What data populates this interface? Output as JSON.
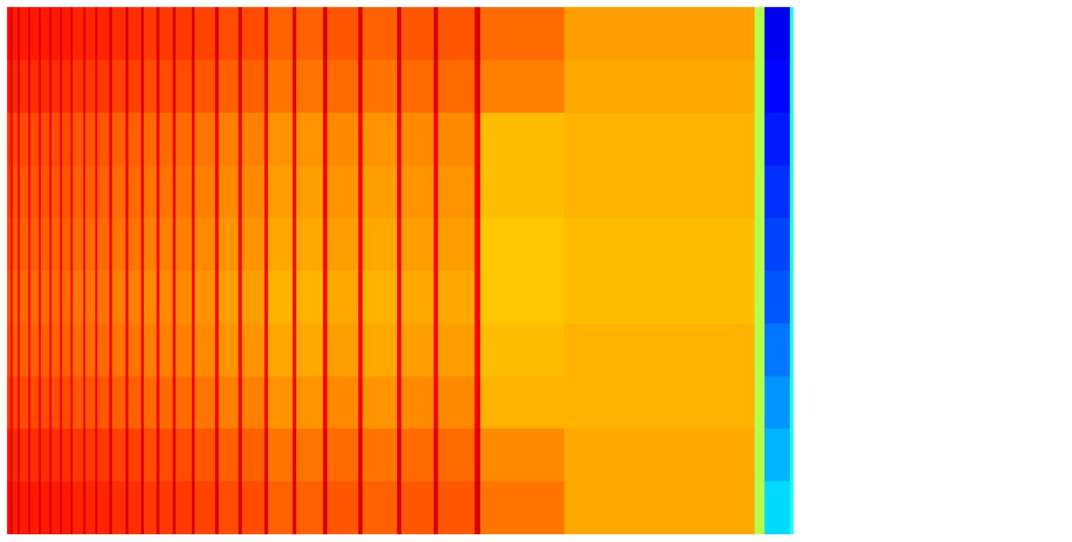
{
  "chart_data": {
    "type": "heatmap",
    "color": "jet",
    "tick_labels": false,
    "xlim": [
      0,
      1115
    ],
    "ylim": [
      0,
      748
    ],
    "color_range": [
      0,
      1
    ],
    "x_edges": [
      0,
      5,
      8,
      15,
      18,
      30,
      33,
      45,
      48,
      60,
      63,
      75,
      78,
      90,
      93,
      108,
      111,
      125,
      128,
      145,
      149,
      168,
      172,
      190,
      194,
      212,
      216,
      235,
      239,
      262,
      266,
      295,
      300,
      328,
      333,
      365,
      370,
      405,
      410,
      448,
      454,
      498,
      504,
      553,
      559,
      605,
      611,
      663,
      671,
      790,
      1060,
      1074,
      1110,
      1115
    ],
    "y_edges": [
      0,
      75,
      150,
      225,
      299,
      374,
      449,
      524,
      598,
      673,
      748
    ],
    "values": [
      [
        0.87,
        0.91,
        0.85,
        0.91,
        0.85,
        0.91,
        0.85,
        0.91,
        0.85,
        0.91,
        0.85,
        0.91,
        0.85,
        0.91,
        0.84,
        0.91,
        0.84,
        0.91,
        0.84,
        0.91,
        0.83,
        0.91,
        0.83,
        0.91,
        0.82,
        0.91,
        0.82,
        0.91,
        0.82,
        0.91,
        0.81,
        0.91,
        0.8,
        0.91,
        0.8,
        0.91,
        0.78,
        0.91,
        0.78,
        0.91,
        0.79,
        0.91,
        0.78,
        0.91,
        0.79,
        0.91,
        0.79,
        0.91,
        0.77,
        0.72,
        0.55,
        0.11,
        0.4
      ],
      [
        0.85,
        0.9,
        0.83,
        0.9,
        0.83,
        0.9,
        0.83,
        0.9,
        0.83,
        0.9,
        0.83,
        0.9,
        0.83,
        0.9,
        0.82,
        0.9,
        0.82,
        0.9,
        0.82,
        0.9,
        0.81,
        0.9,
        0.81,
        0.9,
        0.8,
        0.9,
        0.8,
        0.9,
        0.8,
        0.9,
        0.79,
        0.9,
        0.78,
        0.9,
        0.78,
        0.9,
        0.76,
        0.9,
        0.76,
        0.9,
        0.77,
        0.9,
        0.76,
        0.9,
        0.77,
        0.9,
        0.77,
        0.9,
        0.75,
        0.71,
        0.55,
        0.13,
        0.4
      ],
      [
        0.82,
        0.88,
        0.8,
        0.88,
        0.8,
        0.88,
        0.8,
        0.88,
        0.8,
        0.88,
        0.8,
        0.88,
        0.8,
        0.88,
        0.79,
        0.88,
        0.79,
        0.88,
        0.79,
        0.88,
        0.78,
        0.88,
        0.78,
        0.88,
        0.77,
        0.88,
        0.77,
        0.88,
        0.77,
        0.88,
        0.76,
        0.88,
        0.75,
        0.88,
        0.75,
        0.88,
        0.73,
        0.88,
        0.73,
        0.88,
        0.74,
        0.88,
        0.73,
        0.88,
        0.74,
        0.88,
        0.74,
        0.88,
        0.69,
        0.7,
        0.55,
        0.15,
        0.4
      ],
      [
        0.81,
        0.88,
        0.79,
        0.88,
        0.79,
        0.88,
        0.79,
        0.88,
        0.79,
        0.88,
        0.79,
        0.88,
        0.79,
        0.88,
        0.78,
        0.88,
        0.78,
        0.88,
        0.78,
        0.88,
        0.77,
        0.88,
        0.77,
        0.88,
        0.76,
        0.88,
        0.76,
        0.88,
        0.76,
        0.88,
        0.75,
        0.88,
        0.74,
        0.88,
        0.74,
        0.88,
        0.72,
        0.88,
        0.72,
        0.88,
        0.73,
        0.88,
        0.72,
        0.88,
        0.73,
        0.88,
        0.73,
        0.88,
        0.69,
        0.7,
        0.55,
        0.17,
        0.4
      ],
      [
        0.8,
        0.87,
        0.78,
        0.87,
        0.78,
        0.87,
        0.78,
        0.87,
        0.78,
        0.87,
        0.78,
        0.87,
        0.78,
        0.87,
        0.77,
        0.87,
        0.77,
        0.87,
        0.77,
        0.87,
        0.76,
        0.87,
        0.76,
        0.87,
        0.75,
        0.87,
        0.75,
        0.87,
        0.75,
        0.87,
        0.74,
        0.87,
        0.73,
        0.87,
        0.73,
        0.87,
        0.71,
        0.87,
        0.71,
        0.87,
        0.72,
        0.87,
        0.71,
        0.87,
        0.72,
        0.87,
        0.72,
        0.87,
        0.68,
        0.69,
        0.55,
        0.19,
        0.4
      ],
      [
        0.79,
        0.87,
        0.77,
        0.87,
        0.77,
        0.87,
        0.77,
        0.87,
        0.77,
        0.87,
        0.77,
        0.87,
        0.77,
        0.87,
        0.76,
        0.87,
        0.76,
        0.87,
        0.76,
        0.87,
        0.75,
        0.87,
        0.75,
        0.87,
        0.74,
        0.87,
        0.74,
        0.87,
        0.74,
        0.87,
        0.73,
        0.87,
        0.72,
        0.87,
        0.72,
        0.87,
        0.7,
        0.87,
        0.7,
        0.87,
        0.71,
        0.87,
        0.7,
        0.87,
        0.71,
        0.87,
        0.71,
        0.87,
        0.68,
        0.69,
        0.55,
        0.21,
        0.4
      ],
      [
        0.8,
        0.87,
        0.78,
        0.87,
        0.78,
        0.87,
        0.78,
        0.87,
        0.78,
        0.87,
        0.78,
        0.87,
        0.78,
        0.87,
        0.77,
        0.87,
        0.77,
        0.87,
        0.77,
        0.87,
        0.76,
        0.87,
        0.76,
        0.87,
        0.75,
        0.87,
        0.75,
        0.87,
        0.75,
        0.87,
        0.74,
        0.87,
        0.73,
        0.87,
        0.73,
        0.87,
        0.71,
        0.87,
        0.71,
        0.87,
        0.72,
        0.87,
        0.71,
        0.87,
        0.72,
        0.87,
        0.72,
        0.87,
        0.69,
        0.7,
        0.55,
        0.24,
        0.4
      ],
      [
        0.82,
        0.88,
        0.8,
        0.88,
        0.8,
        0.88,
        0.8,
        0.88,
        0.8,
        0.88,
        0.8,
        0.88,
        0.8,
        0.88,
        0.79,
        0.88,
        0.79,
        0.88,
        0.79,
        0.88,
        0.78,
        0.88,
        0.78,
        0.88,
        0.77,
        0.88,
        0.77,
        0.88,
        0.77,
        0.88,
        0.76,
        0.88,
        0.75,
        0.88,
        0.75,
        0.88,
        0.73,
        0.88,
        0.73,
        0.88,
        0.74,
        0.88,
        0.73,
        0.88,
        0.74,
        0.88,
        0.74,
        0.88,
        0.7,
        0.7,
        0.55,
        0.27,
        0.4
      ],
      [
        0.85,
        0.9,
        0.83,
        0.9,
        0.83,
        0.9,
        0.83,
        0.9,
        0.83,
        0.9,
        0.83,
        0.9,
        0.83,
        0.9,
        0.82,
        0.9,
        0.82,
        0.9,
        0.82,
        0.9,
        0.81,
        0.9,
        0.81,
        0.9,
        0.8,
        0.9,
        0.8,
        0.9,
        0.8,
        0.9,
        0.79,
        0.9,
        0.78,
        0.9,
        0.78,
        0.9,
        0.76,
        0.9,
        0.76,
        0.9,
        0.77,
        0.9,
        0.76,
        0.9,
        0.77,
        0.9,
        0.77,
        0.9,
        0.74,
        0.71,
        0.55,
        0.3,
        0.4
      ],
      [
        0.87,
        0.91,
        0.85,
        0.91,
        0.85,
        0.91,
        0.85,
        0.91,
        0.85,
        0.91,
        0.85,
        0.91,
        0.85,
        0.91,
        0.84,
        0.91,
        0.84,
        0.91,
        0.84,
        0.91,
        0.83,
        0.91,
        0.83,
        0.91,
        0.82,
        0.91,
        0.82,
        0.91,
        0.82,
        0.91,
        0.81,
        0.91,
        0.8,
        0.91,
        0.8,
        0.91,
        0.78,
        0.91,
        0.78,
        0.91,
        0.79,
        0.91,
        0.78,
        0.91,
        0.79,
        0.91,
        0.79,
        0.91,
        0.76,
        0.71,
        0.55,
        0.34,
        0.4
      ]
    ]
  }
}
